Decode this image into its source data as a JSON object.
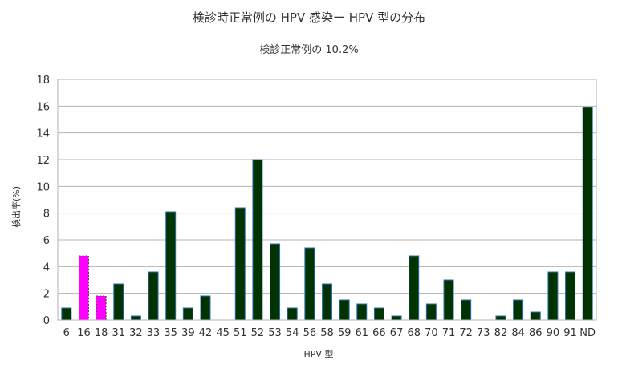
{
  "chart_data": {
    "type": "bar",
    "title": "検診時正常例の HPV 感染ー HPV 型の分布",
    "subtitle": "検診正常例の 10.2%",
    "xlabel": "HPV 型",
    "ylabel": "検出率(%)",
    "ylim": [
      0,
      18
    ],
    "yticks": [
      0,
      2,
      4,
      6,
      8,
      10,
      12,
      14,
      16,
      18
    ],
    "grid": true,
    "categories": [
      "6",
      "16",
      "18",
      "31",
      "32",
      "33",
      "35",
      "39",
      "42",
      "45",
      "51",
      "52",
      "53",
      "54",
      "56",
      "58",
      "59",
      "61",
      "66",
      "67",
      "68",
      "70",
      "71",
      "72",
      "73",
      "82",
      "84",
      "86",
      "90",
      "91",
      "ND"
    ],
    "values": [
      0.9,
      4.8,
      1.8,
      2.7,
      0.3,
      3.6,
      8.1,
      0.9,
      1.8,
      0,
      8.4,
      12.0,
      5.7,
      0.9,
      5.4,
      2.7,
      1.5,
      1.2,
      0.9,
      0.3,
      4.8,
      1.2,
      3.0,
      1.5,
      0,
      0.3,
      1.5,
      0.6,
      3.6,
      3.6,
      15.9
    ],
    "highlight": [
      "16",
      "18"
    ],
    "colors": {
      "bar": "#003300",
      "bar_edge": "#2a6fb0",
      "highlight": "#ff00ff",
      "grid": "#b3b3b3",
      "text": "#333333"
    }
  }
}
